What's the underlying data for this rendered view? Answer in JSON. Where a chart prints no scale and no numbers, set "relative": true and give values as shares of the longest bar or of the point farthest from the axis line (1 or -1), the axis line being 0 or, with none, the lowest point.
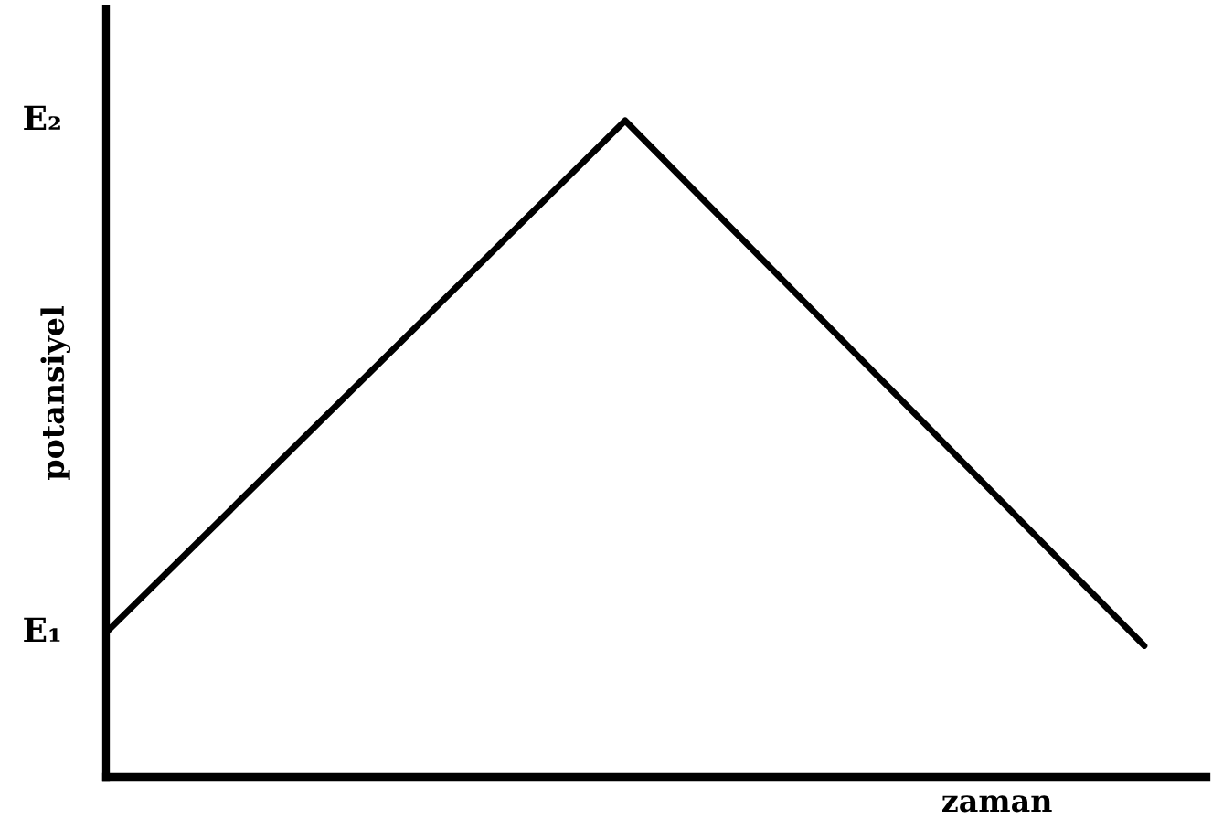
{
  "chart_data": {
    "type": "line",
    "relative": true,
    "xlabel": "zaman",
    "ylabel": "potansiyel",
    "categories": [
      null,
      null,
      null
    ],
    "series": [
      {
        "color": "#000000",
        "values": [
          0.22,
          1,
          0.2
        ]
      }
    ],
    "annotations": [
      "E₁",
      "E₂"
    ],
    "marker": "none",
    "line_style": "solid",
    "grid": false,
    "legend": false
  }
}
